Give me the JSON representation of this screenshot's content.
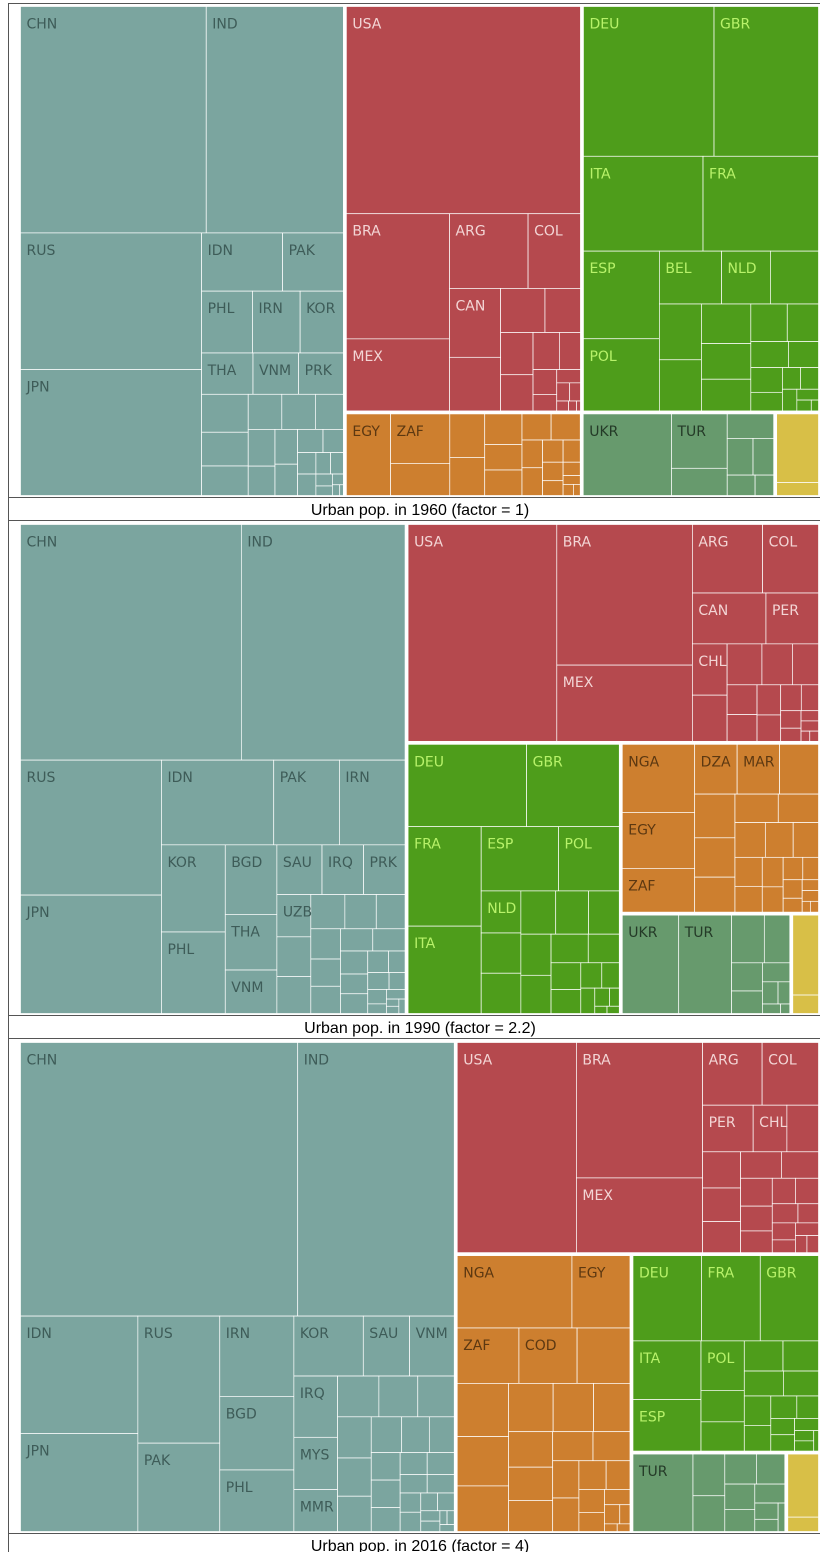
{
  "chart_data": [
    {
      "type": "treemap",
      "title": "Urban pop. in 1960 (factor = 1)",
      "groups": [
        {
          "color": "#7ba59f",
          "label_color": "#3e5c58",
          "categories": [
            "CHN",
            "IND",
            "RUS",
            "JPN",
            "IDN",
            "PAK",
            "PHL",
            "IRN",
            "KOR",
            "THA",
            "VNM",
            "PRK",
            null,
            null,
            null,
            null,
            null,
            null,
            null,
            null,
            null,
            null,
            null,
            null,
            null,
            null,
            null,
            null,
            null,
            null,
            null,
            null,
            null
          ],
          "values": [
            107,
            79,
            63,
            58,
            12,
            9,
            8,
            7.5,
            6.8,
            5.4,
            4.8,
            4.7,
            4.5,
            4,
            3.5,
            3,
            3,
            2.5,
            2.5,
            2,
            2,
            1.8,
            1.5,
            1.2,
            1,
            1,
            0.8,
            0.7,
            0.5,
            0.4,
            0.3,
            0.2,
            0.1
          ]
        },
        {
          "color": "#b5494e",
          "label_color": "#f3d5d5",
          "categories": [
            "USA",
            "BRA",
            "MEX",
            "ARG",
            "COL",
            "CAN",
            null,
            null,
            null,
            null,
            null,
            null,
            null,
            null,
            null,
            null,
            null,
            null,
            null,
            null,
            null
          ],
          "values": [
            124,
            33,
            19,
            15,
            10,
            9,
            7,
            5,
            4,
            3.5,
            3,
            2.5,
            2,
            1.5,
            1,
            0.8,
            0.6,
            0.5,
            0.3,
            0.2,
            0.1
          ]
        },
        {
          "color": "#4e9d1b",
          "label_color": "#b8f26a",
          "categories": [
            "DEU",
            "GBR",
            "ITA",
            "FRA",
            "ESP",
            "POL",
            "BEL",
            "NLD",
            null,
            null,
            null,
            null,
            null,
            null,
            null,
            null,
            null,
            null,
            null,
            null,
            null,
            null,
            null,
            null,
            null,
            null
          ],
          "values": [
            50,
            40,
            29,
            28,
            17,
            14,
            8.4,
            6.6,
            6.5,
            6,
            5.5,
            5,
            4.5,
            4,
            3.5,
            3,
            2.5,
            2,
            2,
            1.5,
            1,
            1,
            0.8,
            0.6,
            0.4,
            0.2
          ]
        },
        {
          "color": "#cd7f2f",
          "label_color": "#5c3811",
          "categories": [
            "EGY",
            "ZAF",
            null,
            null,
            null,
            null,
            null,
            null,
            null,
            null,
            null,
            null,
            null,
            null,
            null,
            null,
            null,
            null,
            null,
            null
          ],
          "values": [
            9.5,
            7.7,
            5,
            4,
            3.5,
            3,
            2.5,
            2.5,
            2,
            2,
            1.5,
            1.5,
            1.2,
            1,
            1,
            0.8,
            0.6,
            0.4,
            0.3,
            0.2
          ]
        },
        {
          "color": "#679a6d",
          "label_color": "#243a27",
          "categories": [
            "UKR",
            "TUR",
            null,
            null,
            null,
            null,
            null,
            null
          ],
          "values": [
            19,
            8,
            4,
            3,
            2.5,
            2,
            1.5,
            1
          ]
        },
        {
          "color": "#d8bf47",
          "categories": [
            null,
            null
          ],
          "values": [
            8,
            1.5
          ]
        }
      ]
    },
    {
      "type": "treemap",
      "title": "Urban pop. in 1990 (factor = 2.2)",
      "groups": [
        {
          "color": "#7ba59f",
          "label_color": "#3e5c58",
          "categories": [
            "CHN",
            "IND",
            "RUS",
            "JPN",
            "IDN",
            "PAK",
            "IRN",
            "KOR",
            "PHL",
            "BGD",
            "THA",
            "VNM",
            "SAU",
            "IRQ",
            "PRK",
            "UZB",
            null,
            null,
            null,
            null,
            null,
            null,
            null,
            null,
            null,
            null,
            null,
            null,
            null,
            null,
            null,
            null,
            null,
            null,
            null,
            null,
            null,
            null,
            null
          ],
          "values": [
            290,
            215,
            106,
            93,
            53,
            31,
            31,
            31,
            29,
            20,
            16,
            12.5,
            12.5,
            11.5,
            11.5,
            8,
            7.5,
            7,
            6.5,
            6,
            5.5,
            5,
            4.5,
            4.5,
            4,
            4,
            3.5,
            3,
            3,
            2.5,
            2,
            2,
            1.5,
            1.5,
            1,
            1,
            0.5,
            0.5,
            0.5
          ]
        },
        {
          "color": "#b5494e",
          "label_color": "#f3d5d5",
          "categories": [
            "USA",
            "BRA",
            "MEX",
            "ARG",
            "COL",
            "CAN",
            "PER",
            "CHL",
            null,
            null,
            null,
            null,
            null,
            null,
            null,
            null,
            null,
            null,
            null,
            null,
            null,
            null,
            null,
            null
          ],
          "values": [
            181,
            107,
            58,
            27,
            21.5,
            21,
            15,
            10,
            9,
            8,
            7,
            6,
            5,
            4.5,
            4,
            3.5,
            3,
            2.5,
            2,
            1.5,
            1,
            1,
            0.5,
            0.5
          ]
        },
        {
          "color": "#4e9d1b",
          "label_color": "#b8f26a",
          "categories": [
            "DEU",
            "GBR",
            "FRA",
            "ITA",
            "ESP",
            "POL",
            "NLD",
            null,
            null,
            null,
            null,
            null,
            null,
            null,
            null,
            null,
            null,
            null,
            null,
            null,
            null,
            null,
            null,
            null,
            null
          ],
          "values": [
            55,
            43,
            41,
            36,
            28,
            22,
            9.4,
            9,
            9,
            8.5,
            8,
            7.5,
            7,
            6.5,
            6,
            5,
            4.5,
            4,
            3,
            2.5,
            2,
            1.5,
            1,
            0.5,
            0.5
          ]
        },
        {
          "color": "#cd7f2f",
          "label_color": "#5c3811",
          "categories": [
            "NGA",
            "EGY",
            "ZAF",
            "DZA",
            "MAR",
            null,
            null,
            null,
            null,
            null,
            null,
            null,
            null,
            null,
            null,
            null,
            null,
            null,
            null,
            null,
            null,
            null,
            null,
            null,
            null,
            null
          ],
          "values": [
            28,
            23,
            18,
            12,
            12,
            11,
            10,
            9,
            8,
            7,
            6.5,
            6,
            5.5,
            5,
            4.5,
            4,
            3.5,
            3,
            2.5,
            2,
            2,
            1.5,
            1,
            1,
            0.5,
            0.5
          ]
        },
        {
          "color": "#679a6d",
          "label_color": "#243a27",
          "categories": [
            "UKR",
            "TUR",
            null,
            null,
            null,
            null,
            null,
            null,
            null,
            null,
            null
          ],
          "values": [
            32,
            30,
            9,
            7,
            5,
            4,
            3,
            2,
            1.5,
            1,
            0.5
          ]
        },
        {
          "color": "#d8bf47",
          "categories": [
            null,
            null
          ],
          "values": [
            13,
            3
          ]
        }
      ]
    },
    {
      "type": "treemap",
      "title": "Urban pop. in 2016 (factor = 4)",
      "groups": [
        {
          "color": "#7ba59f",
          "label_color": "#3e5c58",
          "categories": [
            "CHN",
            "IND",
            "IDN",
            "JPN",
            "RUS",
            "PAK",
            "IRN",
            "BGD",
            "PHL",
            "KOR",
            "SAU",
            "VNM",
            "IRQ",
            "MYS",
            "MMR",
            null,
            null,
            null,
            null,
            null,
            null,
            null,
            null,
            null,
            null,
            null,
            null,
            null,
            null,
            null,
            null,
            null,
            null,
            null,
            null,
            null,
            null,
            null,
            null,
            null
          ],
          "values": [
            765,
            432,
            139,
            116,
            105,
            73,
            60,
            55,
            46,
            42,
            28,
            27,
            27,
            23,
            18.5,
            17,
            16,
            15,
            14,
            13,
            12,
            11,
            10,
            9,
            8,
            8,
            7,
            6,
            6,
            5,
            5,
            4,
            4,
            3,
            3,
            2,
            2,
            1,
            1,
            1
          ]
        },
        {
          "color": "#b5494e",
          "label_color": "#f3d5d5",
          "categories": [
            "USA",
            "BRA",
            "MEX",
            "ARG",
            "COL",
            "PER",
            "CHL",
            null,
            null,
            null,
            null,
            null,
            null,
            null,
            null,
            null,
            null,
            null,
            null,
            null,
            null,
            null,
            null,
            null,
            null
          ],
          "values": [
            255,
            174,
            96,
            38,
            36,
            24,
            16,
            15,
            14,
            13,
            12,
            11,
            10,
            9,
            8,
            7,
            6,
            6,
            5,
            4,
            4,
            3,
            3,
            2,
            2
          ]
        },
        {
          "color": "#cd7f2f",
          "label_color": "#5c3811",
          "categories": [
            "NGA",
            "EGY",
            "ZAF",
            "COD",
            null,
            null,
            null,
            null,
            null,
            null,
            null,
            null,
            null,
            null,
            null,
            null,
            null,
            null,
            null,
            null,
            null,
            null,
            null,
            null,
            null,
            null,
            null
          ],
          "values": [
            85,
            43,
            35,
            33,
            30,
            28,
            26,
            24,
            22,
            20,
            18,
            16,
            15,
            14,
            12,
            11,
            10,
            9,
            8,
            7,
            6,
            5,
            4,
            3,
            2,
            1,
            1
          ]
        },
        {
          "color": "#4e9d1b",
          "label_color": "#b8f26a",
          "categories": [
            "DEU",
            "FRA",
            "GBR",
            "ITA",
            "ESP",
            "POL",
            null,
            null,
            null,
            null,
            null,
            null,
            null,
            null,
            null,
            null,
            null,
            null,
            null,
            null,
            null,
            null
          ],
          "values": [
            60,
            51.5,
            51,
            41,
            36,
            22,
            14,
            13,
            12,
            11,
            10,
            9,
            8,
            7,
            6,
            5,
            4,
            4,
            3,
            2,
            2,
            1
          ]
        },
        {
          "color": "#679a6d",
          "label_color": "#243a27",
          "categories": [
            "TUR",
            null,
            null,
            null,
            null,
            null,
            null,
            null,
            null,
            null,
            null
          ],
          "values": [
            49,
            14,
            12,
            10,
            9,
            8,
            7,
            6,
            4,
            3,
            2
          ]
        },
        {
          "color": "#d8bf47",
          "categories": [
            null,
            null
          ],
          "values": [
            22,
            5
          ]
        }
      ]
    }
  ]
}
